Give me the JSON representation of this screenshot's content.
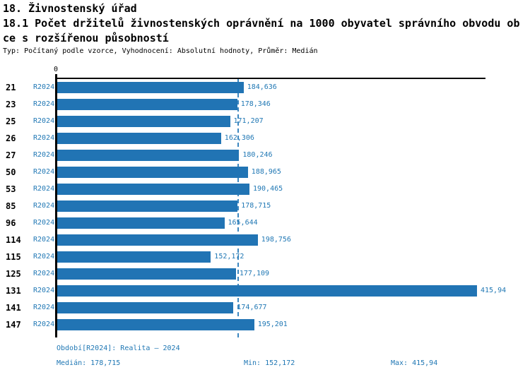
{
  "header": {
    "title_line1": "18. Živnostenský úřad",
    "title_line2": "18.1 Počet držitelů živnostenských oprávnění na 1000 obyvatel správního obvodu ob",
    "title_line3": "ce s rozšířenou působností",
    "subtitle": "Typ: Počítaný podle vzorce, Vyhodnocení: Absolutní hodnoty, Průměr: Medián"
  },
  "chart_data": {
    "type": "bar",
    "orientation": "horizontal",
    "title": "18.1 Počet držitelů živnostenských oprávnění na 1000 obyvatel správního obvodu obce s rozšířenou působností",
    "categories": [
      "21",
      "23",
      "25",
      "26",
      "27",
      "50",
      "53",
      "85",
      "96",
      "114",
      "115",
      "125",
      "131",
      "141",
      "147"
    ],
    "series": [
      {
        "name": "R2024",
        "values": [
          184.636,
          178.346,
          171.207,
          162.306,
          180.246,
          188.965,
          190.465,
          178.715,
          165.644,
          198.756,
          152.172,
          177.109,
          415.94,
          174.677,
          195.201
        ]
      }
    ],
    "value_labels": [
      "184,636",
      "178,346",
      "171,207",
      "162,306",
      "180,246",
      "188,965",
      "190,465",
      "178,715",
      "165,644",
      "198,756",
      "152,172",
      "177,109",
      "415,94",
      "174,677",
      "195,201"
    ],
    "xlabel": "",
    "ylabel": "",
    "x_axis": {
      "min": 0,
      "tick_labels": [
        "0"
      ]
    },
    "grid": "median-reference-line-only",
    "legend_position": "none",
    "median_line_value": 178.715,
    "stats": {
      "median": 178.715,
      "min": 152.172,
      "max": 415.94
    }
  },
  "axis": {
    "zero_tick": "0"
  },
  "footer": {
    "period": "Období[R2024]: Realita – 2024",
    "median": "Medián: 178,715",
    "min": "Min: 152,172",
    "max": "Max: 415,94"
  },
  "colors": {
    "bar": "#2174b4",
    "accent_text": "#1f77b4",
    "median_line": "#3c87c0",
    "axis": "#000000"
  }
}
